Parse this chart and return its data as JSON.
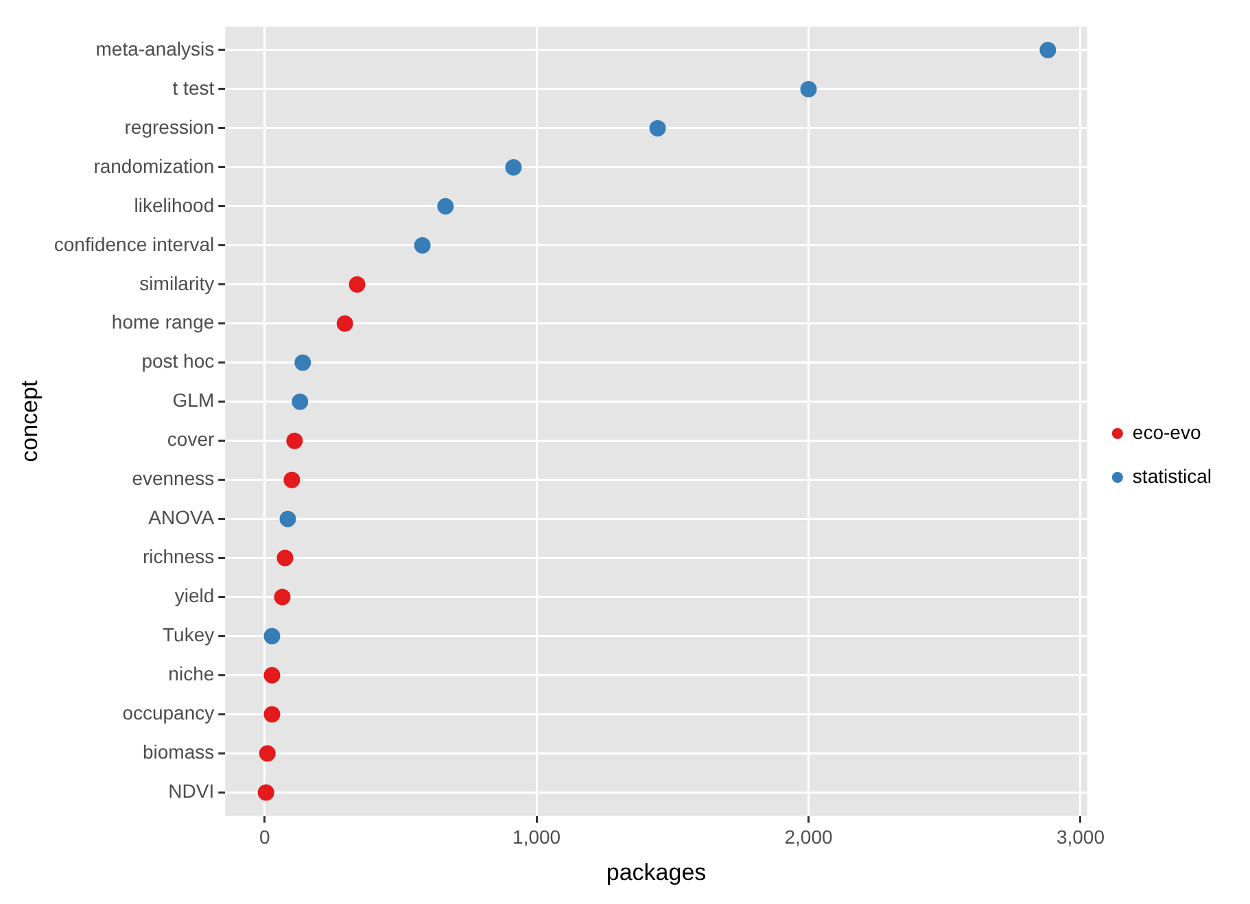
{
  "chart_data": {
    "type": "scatter",
    "orientation": "horizontal",
    "xlabel": "packages",
    "ylabel": "concept",
    "categories": [
      "meta-analysis",
      "t test",
      "regression",
      "randomization",
      "likelihood",
      "confidence interval",
      "similarity",
      "home range",
      "post hoc",
      "GLM",
      "cover",
      "evenness",
      "ANOVA",
      "richness",
      "yield",
      "Tukey",
      "niche",
      "occupancy",
      "biomass",
      "NDVI"
    ],
    "series": [
      {
        "name": "eco-evo",
        "color": "#e41a1c",
        "values": [
          null,
          null,
          null,
          null,
          null,
          null,
          340,
          295,
          null,
          null,
          110,
          100,
          null,
          75,
          65,
          null,
          27,
          27,
          10,
          5
        ]
      },
      {
        "name": "statistical",
        "color": "#377eb8",
        "values": [
          2880,
          2000,
          1445,
          915,
          665,
          580,
          null,
          null,
          140,
          130,
          null,
          null,
          85,
          null,
          null,
          27,
          null,
          null,
          null,
          null
        ]
      }
    ],
    "xlim": [
      -145,
      3025
    ],
    "xticks": [
      0,
      {
        "value": 1000,
        "label": "1,000"
      },
      {
        "value": 2000,
        "label": "2,000"
      },
      {
        "value": 3000,
        "label": "3,000"
      }
    ],
    "grid": true,
    "legend": "right",
    "marker": "circle"
  }
}
